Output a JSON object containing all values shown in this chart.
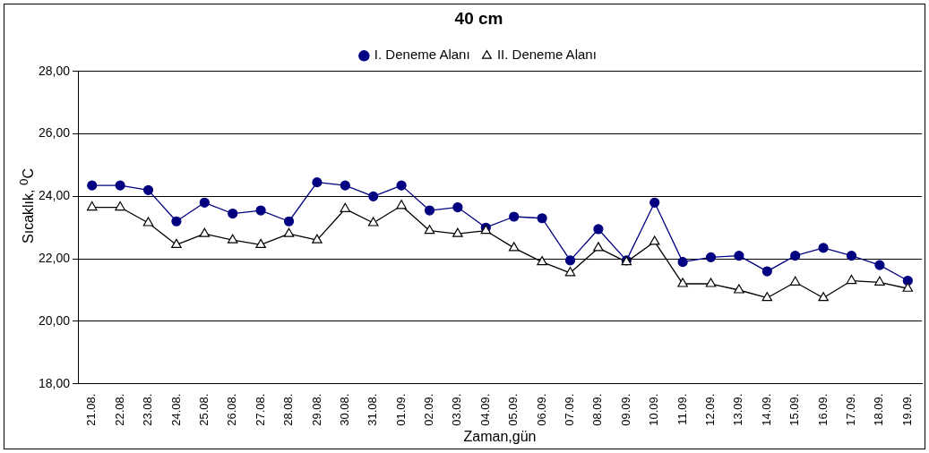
{
  "chart_data": {
    "type": "line",
    "title": "40 cm",
    "xlabel": "Zaman,gün",
    "ylabel": "Sıcaklık, $^{0}$C",
    "categories": [
      "21.08.",
      "22.08.",
      "23.08.",
      "24.08.",
      "25.08.",
      "26.08.",
      "27.08.",
      "28.08.",
      "29.08.",
      "30.08.",
      "31.08.",
      "01.09.",
      "02.09.",
      "03.09.",
      "04.09.",
      "05.09.",
      "06.09.",
      "07.09.",
      "08.09.",
      "09.09.",
      "10.09.",
      "11.09.",
      "12.09.",
      "13.09.",
      "14.09.",
      "15.09.",
      "16.09.",
      "17.09.",
      "18.09.",
      "19.09."
    ],
    "series": [
      {
        "name": "I. Deneme Alanı",
        "color": "#000080",
        "marker": "circle",
        "values": [
          24.35,
          24.35,
          24.2,
          23.2,
          23.8,
          23.45,
          23.55,
          23.2,
          24.45,
          24.35,
          24.0,
          24.35,
          23.55,
          23.65,
          23.0,
          23.35,
          23.3,
          21.95,
          22.95,
          21.95,
          23.8,
          21.9,
          22.05,
          22.1,
          21.6,
          22.1,
          22.35,
          22.1,
          21.8,
          21.3
        ]
      },
      {
        "name": "II. Deneme Alanı",
        "color": "#000000",
        "marker": "triangle",
        "values": [
          23.65,
          23.65,
          23.15,
          22.45,
          22.8,
          22.6,
          22.45,
          22.8,
          22.6,
          23.6,
          23.15,
          23.7,
          22.9,
          22.8,
          22.9,
          22.35,
          21.9,
          21.55,
          22.35,
          21.9,
          22.55,
          21.2,
          21.2,
          21.0,
          20.75,
          21.25,
          20.75,
          21.3,
          21.25,
          21.05
        ]
      }
    ],
    "ylim": [
      18,
      28
    ],
    "yticks": [
      {
        "value": 18,
        "label": "18,00"
      },
      {
        "value": 20,
        "label": "20,00"
      },
      {
        "value": 22,
        "label": "22,00"
      },
      {
        "value": 24,
        "label": "24,00"
      },
      {
        "value": 26,
        "label": "26,00"
      },
      {
        "value": 28,
        "label": "28,00"
      }
    ],
    "grid": "y",
    "legend": "top",
    "line_style": "solid"
  }
}
